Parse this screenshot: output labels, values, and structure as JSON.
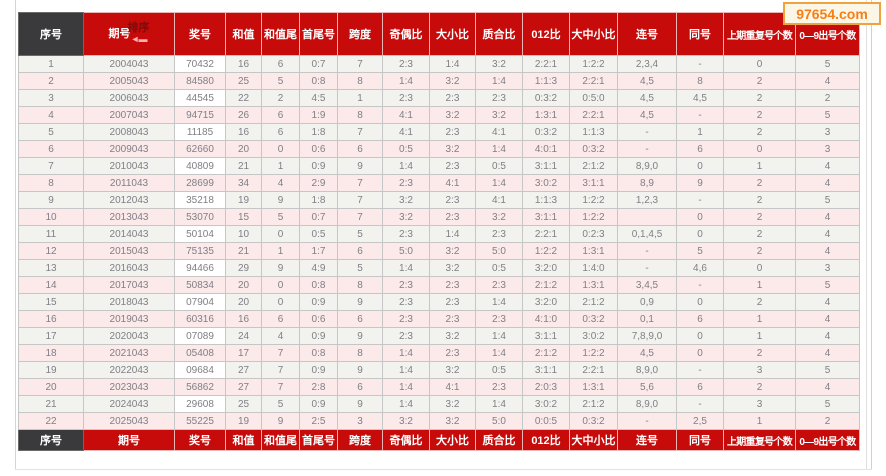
{
  "watermark": {
    "text": "97654.com"
  },
  "table": {
    "sort_label": "排序",
    "columns": [
      "序号",
      "期号",
      "奖号",
      "和值",
      "和值尾",
      "首尾号",
      "跨度",
      "奇偶比",
      "大小比",
      "质合比",
      "012比",
      "大中小比",
      "连号",
      "同号",
      "上期重复号个数",
      "0—9出号个数"
    ],
    "column_keys": [
      "seq",
      "period",
      "prize-number",
      "sum",
      "sum-tail",
      "first-last",
      "span",
      "odd-even-ratio",
      "big-small-ratio",
      "prime-composite-ratio",
      "012-ratio",
      "big-mid-small-ratio",
      "consecutive",
      "same-number",
      "prev-repeat-count",
      "digit-count"
    ],
    "rows": [
      [
        "1",
        "2004043",
        "70432",
        "16",
        "6",
        "0:7",
        "7",
        "2:3",
        "1:4",
        "3:2",
        "2:2:1",
        "1:2:2",
        "2,3,4",
        "-",
        "0",
        "5"
      ],
      [
        "2",
        "2005043",
        "84580",
        "25",
        "5",
        "0:8",
        "8",
        "1:4",
        "3:2",
        "1:4",
        "1:1:3",
        "2:2:1",
        "4,5",
        "8",
        "2",
        "4"
      ],
      [
        "3",
        "2006043",
        "44545",
        "22",
        "2",
        "4:5",
        "1",
        "2:3",
        "2:3",
        "2:3",
        "0:3:2",
        "0:5:0",
        "4,5",
        "4,5",
        "2",
        "2"
      ],
      [
        "4",
        "2007043",
        "94715",
        "26",
        "6",
        "1:9",
        "8",
        "4:1",
        "3:2",
        "3:2",
        "1:3:1",
        "2:2:1",
        "4,5",
        "-",
        "2",
        "5"
      ],
      [
        "5",
        "2008043",
        "11185",
        "16",
        "6",
        "1:8",
        "7",
        "4:1",
        "2:3",
        "4:1",
        "0:3:2",
        "1:1:3",
        "-",
        "1",
        "2",
        "3"
      ],
      [
        "6",
        "2009043",
        "62660",
        "20",
        "0",
        "0:6",
        "6",
        "0:5",
        "3:2",
        "1:4",
        "4:0:1",
        "0:3:2",
        "-",
        "6",
        "0",
        "3"
      ],
      [
        "7",
        "2010043",
        "40809",
        "21",
        "1",
        "0:9",
        "9",
        "1:4",
        "2:3",
        "0:5",
        "3:1:1",
        "2:1:2",
        "8,9,0",
        "0",
        "1",
        "4"
      ],
      [
        "8",
        "2011043",
        "28699",
        "34",
        "4",
        "2:9",
        "7",
        "2:3",
        "4:1",
        "1:4",
        "3:0:2",
        "3:1:1",
        "8,9",
        "9",
        "2",
        "4"
      ],
      [
        "9",
        "2012043",
        "35218",
        "19",
        "9",
        "1:8",
        "7",
        "3:2",
        "2:3",
        "4:1",
        "1:1:3",
        "1:2:2",
        "1,2,3",
        "-",
        "2",
        "5"
      ],
      [
        "10",
        "2013043",
        "53070",
        "15",
        "5",
        "0:7",
        "7",
        "3:2",
        "2:3",
        "3:2",
        "3:1:1",
        "1:2:2",
        "",
        "0",
        "2",
        "4"
      ],
      [
        "11",
        "2014043",
        "50104",
        "10",
        "0",
        "0:5",
        "5",
        "2:3",
        "1:4",
        "2:3",
        "2:2:1",
        "0:2:3",
        "0,1,4,5",
        "0",
        "2",
        "4"
      ],
      [
        "12",
        "2015043",
        "75135",
        "21",
        "1",
        "1:7",
        "6",
        "5:0",
        "3:2",
        "5:0",
        "1:2:2",
        "1:3:1",
        "-",
        "5",
        "2",
        "4"
      ],
      [
        "13",
        "2016043",
        "94466",
        "29",
        "9",
        "4:9",
        "5",
        "1:4",
        "3:2",
        "0:5",
        "3:2:0",
        "1:4:0",
        "-",
        "4,6",
        "0",
        "3"
      ],
      [
        "14",
        "2017043",
        "50834",
        "20",
        "0",
        "0:8",
        "8",
        "2:3",
        "2:3",
        "2:3",
        "2:1:2",
        "1:3:1",
        "3,4,5",
        "-",
        "1",
        "5"
      ],
      [
        "15",
        "2018043",
        "07904",
        "20",
        "0",
        "0:9",
        "9",
        "2:3",
        "2:3",
        "1:4",
        "3:2:0",
        "2:1:2",
        "0,9",
        "0",
        "2",
        "4"
      ],
      [
        "16",
        "2019043",
        "60316",
        "16",
        "6",
        "0:6",
        "6",
        "2:3",
        "2:3",
        "2:3",
        "4:1:0",
        "0:3:2",
        "0,1",
        "6",
        "1",
        "4"
      ],
      [
        "17",
        "2020043",
        "07089",
        "24",
        "4",
        "0:9",
        "9",
        "2:3",
        "3:2",
        "1:4",
        "3:1:1",
        "3:0:2",
        "7,8,9,0",
        "0",
        "1",
        "4"
      ],
      [
        "18",
        "2021043",
        "05408",
        "17",
        "7",
        "0:8",
        "8",
        "1:4",
        "2:3",
        "1:4",
        "2:1:2",
        "1:2:2",
        "4,5",
        "0",
        "2",
        "4"
      ],
      [
        "19",
        "2022043",
        "09684",
        "27",
        "7",
        "0:9",
        "9",
        "1:4",
        "3:2",
        "0:5",
        "3:1:1",
        "2:2:1",
        "8,9,0",
        "-",
        "3",
        "5"
      ],
      [
        "20",
        "2023043",
        "56862",
        "27",
        "7",
        "2:8",
        "6",
        "1:4",
        "4:1",
        "2:3",
        "2:0:3",
        "1:3:1",
        "5,6",
        "6",
        "2",
        "4"
      ],
      [
        "21",
        "2024043",
        "29608",
        "25",
        "5",
        "0:9",
        "9",
        "1:4",
        "3:2",
        "1:4",
        "3:0:2",
        "2:1:2",
        "8,9,0",
        "-",
        "3",
        "5"
      ],
      [
        "22",
        "2025043",
        "55225",
        "19",
        "9",
        "2:5",
        "3",
        "3:2",
        "3:2",
        "5:0",
        "0:0:5",
        "0:3:2",
        "-",
        "2,5",
        "1",
        "2"
      ]
    ]
  }
}
